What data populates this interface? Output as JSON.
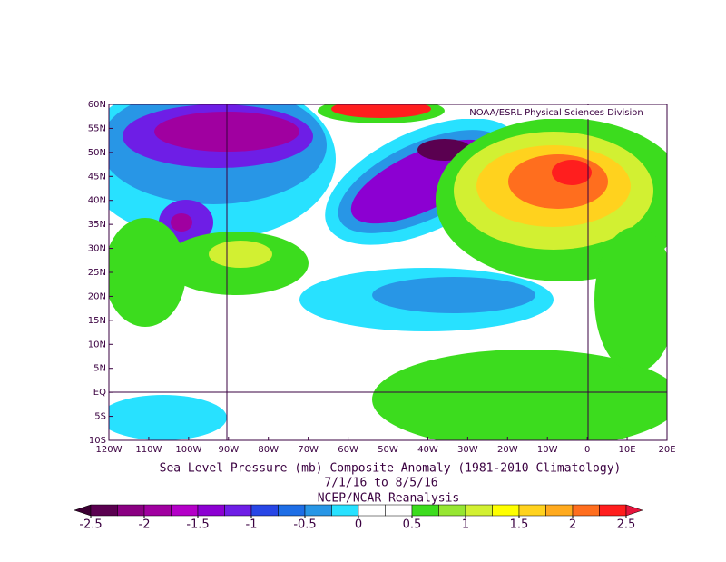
{
  "header": {
    "credit": "NOAA/ESRL Physical Sciences Division"
  },
  "map": {
    "xlim": [
      -120,
      20
    ],
    "ylim": [
      -10,
      60
    ],
    "xticks": [
      {
        "value": -120,
        "label": "120W"
      },
      {
        "value": -110,
        "label": "110W"
      },
      {
        "value": -100,
        "label": "100W"
      },
      {
        "value": -90,
        "label": "90W"
      },
      {
        "value": -80,
        "label": "80W"
      },
      {
        "value": -70,
        "label": "70W"
      },
      {
        "value": -60,
        "label": "60W"
      },
      {
        "value": -50,
        "label": "50W"
      },
      {
        "value": -40,
        "label": "40W"
      },
      {
        "value": -30,
        "label": "30W"
      },
      {
        "value": -20,
        "label": "20W"
      },
      {
        "value": -10,
        "label": "10W"
      },
      0,
      {
        "value": 10,
        "label": "10E"
      },
      {
        "value": 20,
        "label": "20E"
      }
    ],
    "yticks": [
      {
        "value": 60,
        "label": "60N"
      },
      {
        "value": 55,
        "label": "55N"
      },
      {
        "value": 50,
        "label": "50N"
      },
      {
        "value": 45,
        "label": "45N"
      },
      {
        "value": 40,
        "label": "40N"
      },
      {
        "value": 35,
        "label": "35N"
      },
      {
        "value": 30,
        "label": "30N"
      },
      {
        "value": 25,
        "label": "25N"
      },
      {
        "value": 20,
        "label": "20N"
      },
      {
        "value": 15,
        "label": "15N"
      },
      {
        "value": 10,
        "label": "10N"
      },
      {
        "value": 5,
        "label": "5N"
      },
      {
        "value": 0,
        "label": "EQ"
      },
      {
        "value": -5,
        "label": "5S"
      },
      {
        "value": -10,
        "label": "10S"
      }
    ]
  },
  "caption": {
    "title": "Sea Level Pressure (mb) Composite Anomaly (1981-2010 Climatology)",
    "dates": "7/1/16  to 8/5/16",
    "source": "NCEP/NCAR Reanalysis"
  },
  "colorbar": {
    "ticks": [
      -2.5,
      -2,
      -1.5,
      -1,
      -0.5,
      0,
      0.5,
      1,
      1.5,
      2,
      2.5
    ],
    "colors": [
      "#5a0050",
      "#8a0082",
      "#a000a0",
      "#b400c8",
      "#8c00d2",
      "#6e1ee6",
      "#2846e6",
      "#1e6ee6",
      "#2896e6",
      "#28e1ff",
      "#ffffff",
      "#ffffff",
      "#3cdc1e",
      "#96e632",
      "#d2f032",
      "#ffff00",
      "#ffd21e",
      "#ffaa1e",
      "#ff6e1e",
      "#ff1e1e"
    ],
    "under_color": "#3c0033",
    "over_color": "#e6143c"
  }
}
